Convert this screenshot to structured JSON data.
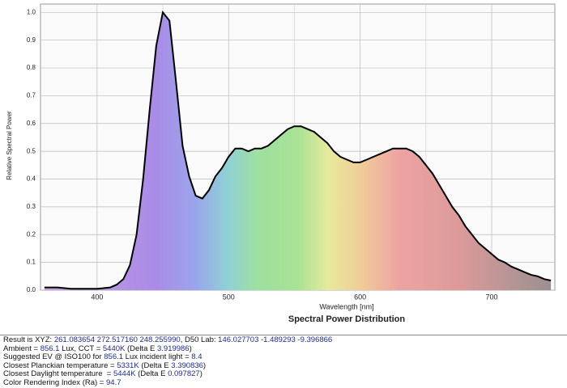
{
  "chart_data": {
    "type": "area-line",
    "title": "Spectral Power Distribution",
    "x_label": "Wavelength [nm]",
    "y_label": "Relative Spectral Power",
    "x": [
      360,
      370,
      380,
      390,
      400,
      410,
      415,
      420,
      425,
      430,
      435,
      440,
      445,
      450,
      455,
      460,
      465,
      470,
      475,
      480,
      485,
      490,
      495,
      500,
      505,
      510,
      515,
      520,
      525,
      530,
      535,
      540,
      545,
      550,
      555,
      560,
      565,
      570,
      575,
      580,
      585,
      590,
      595,
      600,
      605,
      610,
      615,
      620,
      625,
      630,
      635,
      640,
      645,
      650,
      655,
      660,
      665,
      670,
      675,
      680,
      685,
      690,
      695,
      700,
      705,
      710,
      715,
      720,
      725,
      730,
      735,
      740,
      745
    ],
    "values": [
      0.01,
      0.01,
      0.005,
      0.005,
      0.005,
      0.01,
      0.02,
      0.04,
      0.09,
      0.2,
      0.4,
      0.65,
      0.88,
      1.0,
      0.97,
      0.75,
      0.52,
      0.41,
      0.34,
      0.33,
      0.36,
      0.41,
      0.44,
      0.48,
      0.51,
      0.51,
      0.5,
      0.51,
      0.51,
      0.52,
      0.54,
      0.56,
      0.58,
      0.59,
      0.59,
      0.58,
      0.57,
      0.55,
      0.53,
      0.5,
      0.48,
      0.47,
      0.46,
      0.46,
      0.47,
      0.48,
      0.49,
      0.5,
      0.51,
      0.51,
      0.51,
      0.5,
      0.48,
      0.45,
      0.42,
      0.38,
      0.34,
      0.3,
      0.27,
      0.23,
      0.2,
      0.17,
      0.15,
      0.13,
      0.11,
      0.1,
      0.085,
      0.075,
      0.065,
      0.055,
      0.05,
      0.04,
      0.035
    ],
    "color": "#000000",
    "xlim": [
      357,
      748
    ],
    "ylim": [
      0,
      1.03
    ],
    "xticks": [
      400,
      500,
      600,
      700
    ],
    "x_minor_ticks": [
      450,
      550,
      650
    ],
    "yticks": [
      {
        "value": 0,
        "label": "0.0"
      },
      {
        "value": 0.1,
        "label": "0.1"
      },
      {
        "value": 0.2,
        "label": "0.2"
      },
      {
        "value": 0.3,
        "label": "0.3"
      },
      {
        "value": 0.4,
        "label": "0.4"
      },
      {
        "value": 0.5,
        "label": "0.5"
      },
      {
        "value": 0.6,
        "label": "0.6"
      },
      {
        "value": 0.7,
        "label": "0.7"
      },
      {
        "value": 0.8,
        "label": "0.8"
      },
      {
        "value": 0.9,
        "label": "0.9"
      },
      {
        "value": 1.0,
        "label": "1.0"
      }
    ],
    "grid": true
  },
  "results": [
    [
      {
        "text": "Result is XYZ: ",
        "highlight": false
      },
      {
        "text": "261.083654 272.517160 248.255990",
        "highlight": true
      },
      {
        "text": ", D50 Lab: ",
        "highlight": false
      },
      {
        "text": "146.027703 -1.489293 -9.396866",
        "highlight": true
      }
    ],
    [
      {
        "text": "Ambient = ",
        "highlight": false
      },
      {
        "text": "856.1",
        "highlight": true
      },
      {
        "text": " Lux, CCT = ",
        "highlight": false
      },
      {
        "text": "5440K",
        "highlight": true
      },
      {
        "text": " (Delta E ",
        "highlight": false
      },
      {
        "text": "3.919986",
        "highlight": true
      },
      {
        "text": ")",
        "highlight": false
      }
    ],
    [
      {
        "text": "Suggested EV @ ISO100 for ",
        "highlight": false
      },
      {
        "text": "856.1",
        "highlight": true
      },
      {
        "text": " Lux incident light = ",
        "highlight": false
      },
      {
        "text": "8.4",
        "highlight": true
      }
    ],
    [
      {
        "text": "Closest Planckian temperature = ",
        "highlight": false
      },
      {
        "text": "5331K",
        "highlight": true
      },
      {
        "text": " (Delta E ",
        "highlight": false
      },
      {
        "text": "3.390836",
        "highlight": true
      },
      {
        "text": ")",
        "highlight": false
      }
    ],
    [
      {
        "text": "Closest Daylight temperature  = ",
        "highlight": false
      },
      {
        "text": "5444K",
        "highlight": true
      },
      {
        "text": " (Delta E ",
        "highlight": false
      },
      {
        "text": "0.097827",
        "highlight": true
      },
      {
        "text": ")",
        "highlight": false
      }
    ],
    [
      {
        "text": "Color Rendering Index (Ra) = ",
        "highlight": false
      },
      {
        "text": "94.7",
        "highlight": true
      }
    ]
  ]
}
